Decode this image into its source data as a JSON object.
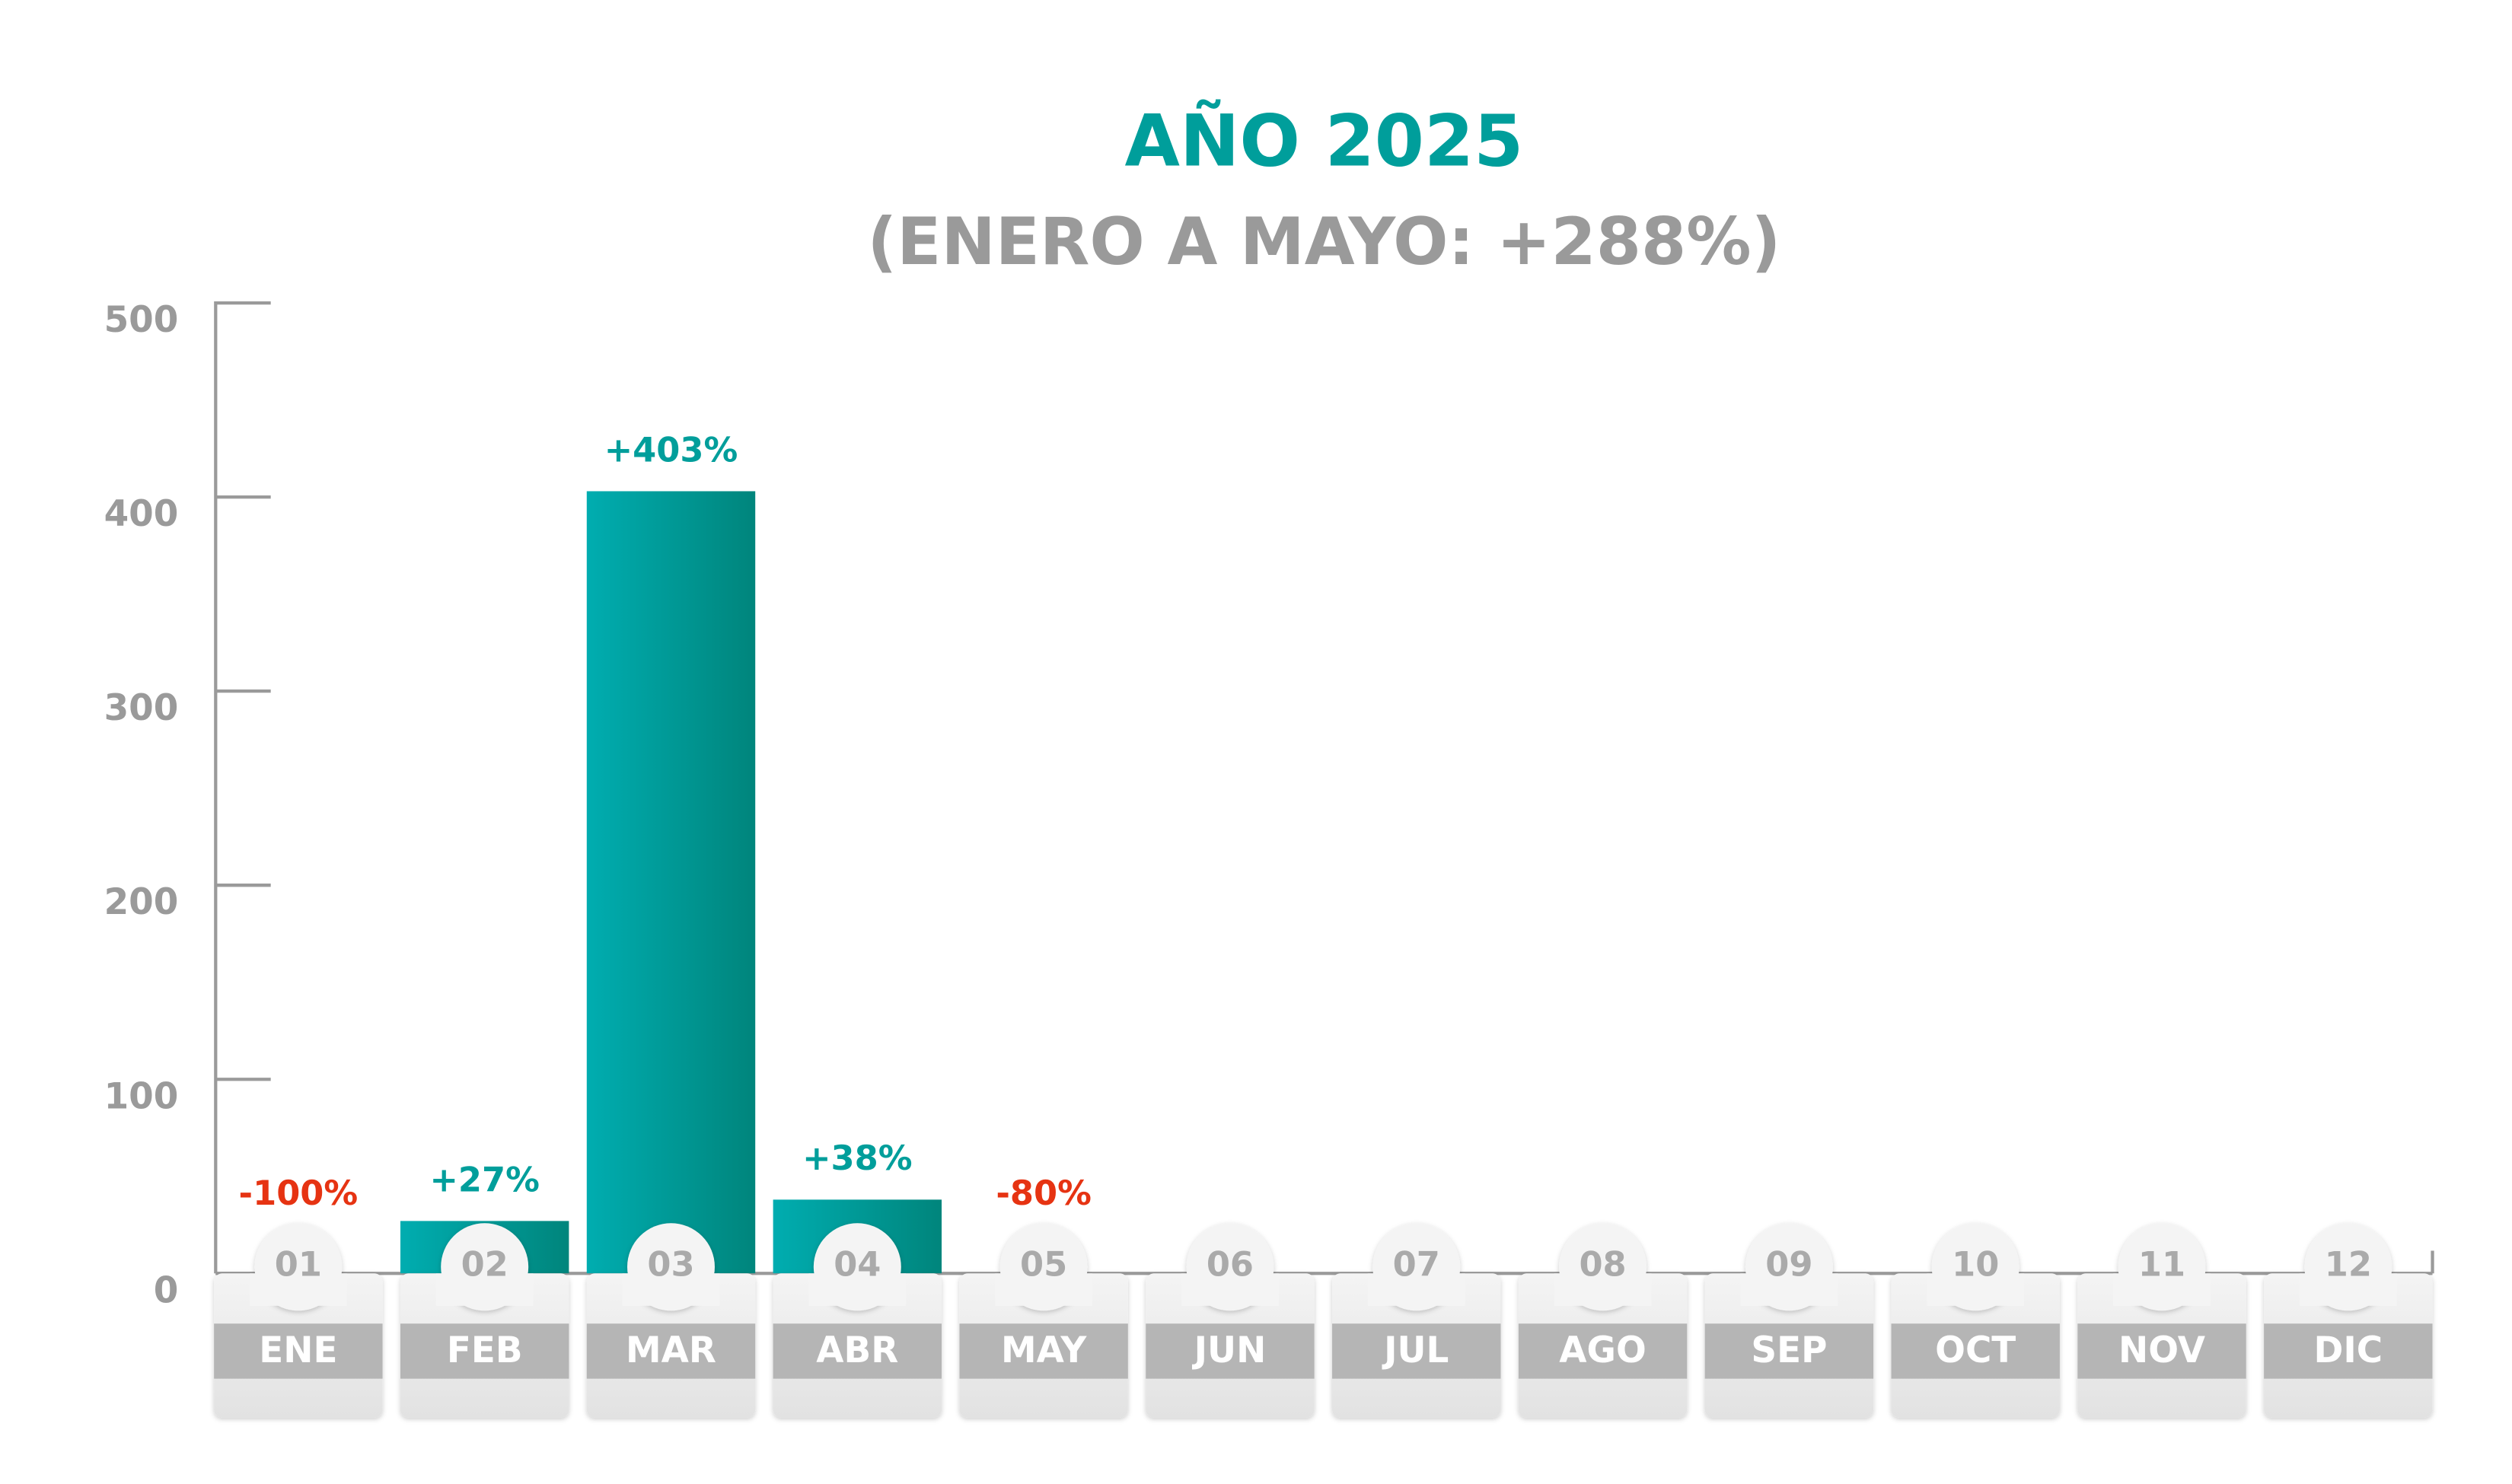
{
  "chart_data": {
    "type": "bar",
    "title": "AÑO 2025",
    "subtitle": "(ENERO A MAYO: +288%)",
    "categories": [
      "ENE",
      "FEB",
      "MAR",
      "ABR",
      "MAY",
      "JUN",
      "JUL",
      "AGO",
      "SEP",
      "OCT",
      "NOV",
      "DIC"
    ],
    "category_numbers": [
      "01",
      "02",
      "03",
      "04",
      "05",
      "06",
      "07",
      "08",
      "09",
      "10",
      "11",
      "12"
    ],
    "values": [
      -100,
      27,
      403,
      38,
      -80,
      null,
      null,
      null,
      null,
      null,
      null,
      null
    ],
    "value_labels": [
      "-100%",
      "+27%",
      "+403%",
      "+38%",
      "-80%",
      null,
      null,
      null,
      null,
      null,
      null,
      null
    ],
    "color": "#009e9b",
    "negative_color": "#e63312",
    "ylim": [
      0,
      500
    ],
    "yticks": [
      0,
      100,
      200,
      300,
      400,
      500
    ]
  }
}
